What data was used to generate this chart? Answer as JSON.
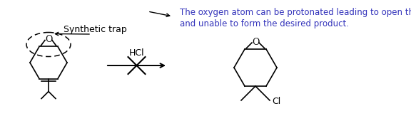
{
  "bg_color": "#ffffff",
  "text_color_black": "#000000",
  "text_color_blue": "#3333bb",
  "synthetic_trap_text": "Synthetic trap",
  "annotation_line1": "The oxygen atom can be protonated leading to open the ring",
  "annotation_line2": "and unable to form the desired product.",
  "hcl_text": "HCl",
  "O_label1": "O",
  "O_label2": "O",
  "Cl_label": "Cl",
  "font_size_annot": 8.5,
  "font_size_label": 9,
  "font_size_trap": 9,
  "font_size_hcl": 9
}
